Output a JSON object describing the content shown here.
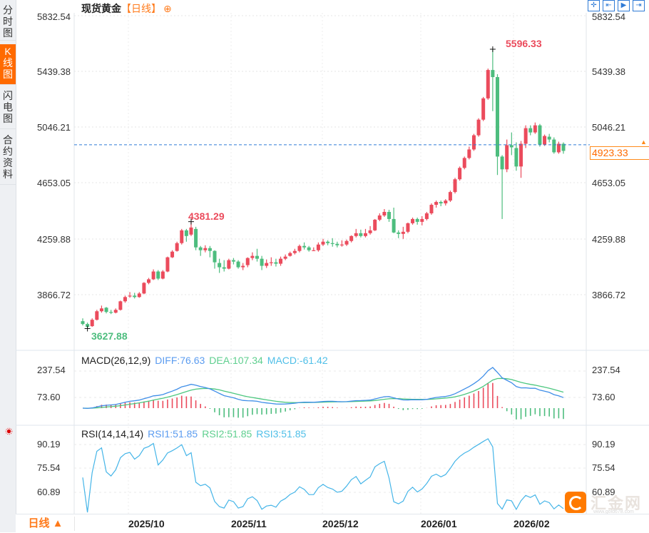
{
  "sidebar": {
    "tabs": [
      {
        "label": "分时图",
        "active": false
      },
      {
        "label": "K线图",
        "active": true
      },
      {
        "label": "闪电图",
        "active": false
      },
      {
        "label": "合约资料",
        "active": false
      }
    ]
  },
  "header": {
    "title": "现货黄金",
    "period": "【日线】",
    "add_symbol": "⊕",
    "tools": [
      "crosshair",
      "zoom-range",
      "play-forward",
      "exit-right"
    ]
  },
  "main_chart": {
    "y_ticks": [
      "5832.54",
      "5439.38",
      "5046.21",
      "4653.05",
      "4259.88",
      "3866.72"
    ],
    "current_price": "4923.33",
    "high_label": "5596.33",
    "mid_high_label": "4381.29",
    "low_label": "3627.88"
  },
  "macd": {
    "title": "MACD(26,12,9)",
    "diff": "DIFF:76.63",
    "dea": "DEA:107.34",
    "macd": "MACD:-61.42",
    "y_ticks": [
      "237.54",
      "73.60"
    ]
  },
  "rsi": {
    "title": "RSI(14,14,14)",
    "rsi1": "RSI1:51.85",
    "rsi2": "RSI2:51.85",
    "rsi3": "RSI3:51.85",
    "y_ticks": [
      "90.19",
      "75.54",
      "60.89"
    ]
  },
  "footer": {
    "period_button": "日线 ▲",
    "x_labels": [
      "2025/10",
      "2025/11",
      "2025/12",
      "2026/01",
      "2026/02"
    ]
  },
  "logo": {
    "name": "汇金网",
    "url": "www.gold678.com"
  },
  "colors": {
    "up": "#eb4b5c",
    "down": "#4dbd7e",
    "diff": "#3f8ee8",
    "dea": "#4cc77f",
    "rsi": "#45b5e8",
    "accent": "#ff6a00",
    "price_line": "#2f7bd6"
  },
  "chart_data": {
    "type": "candlestick",
    "title": "现货黄金 日线",
    "y_axis": {
      "min": 3627.88,
      "max": 5832.54,
      "ticks": [
        5832.54,
        5439.38,
        5046.21,
        4653.05,
        4259.88,
        3866.72
      ]
    },
    "x_labels": [
      "2025/10",
      "2025/11",
      "2025/12",
      "2026/01",
      "2026/02"
    ],
    "annotations": [
      {
        "label": "5596.33",
        "type": "high"
      },
      {
        "label": "4381.29",
        "type": "local high"
      },
      {
        "label": "3627.88",
        "type": "low"
      }
    ],
    "last_price": 4923.33,
    "candles": [
      [
        3680,
        3660,
        3700,
        3650
      ],
      [
        3660,
        3640,
        3670,
        3628
      ],
      [
        3645,
        3690,
        3700,
        3640
      ],
      [
        3690,
        3750,
        3760,
        3685
      ],
      [
        3750,
        3770,
        3790,
        3740
      ],
      [
        3775,
        3745,
        3780,
        3735
      ],
      [
        3745,
        3740,
        3760,
        3730
      ],
      [
        3740,
        3760,
        3770,
        3735
      ],
      [
        3760,
        3820,
        3825,
        3755
      ],
      [
        3820,
        3850,
        3860,
        3810
      ],
      [
        3855,
        3860,
        3885,
        3845
      ],
      [
        3860,
        3850,
        3880,
        3840
      ],
      [
        3850,
        3875,
        3885,
        3845
      ],
      [
        3875,
        3950,
        3955,
        3870
      ],
      [
        3950,
        3975,
        3985,
        3940
      ],
      [
        3975,
        4030,
        4045,
        3970
      ],
      [
        4030,
        3980,
        4040,
        3970
      ],
      [
        3980,
        4030,
        4040,
        3975
      ],
      [
        4030,
        4130,
        4135,
        4025
      ],
      [
        4130,
        4170,
        4180,
        4125
      ],
      [
        4175,
        4230,
        4240,
        4170
      ],
      [
        4230,
        4320,
        4330,
        4220
      ],
      [
        4320,
        4280,
        4330,
        4240
      ],
      [
        4290,
        4340,
        4381,
        4280
      ],
      [
        4330,
        4200,
        4345,
        4180
      ],
      [
        4200,
        4180,
        4210,
        4140
      ],
      [
        4180,
        4195,
        4215,
        4165
      ],
      [
        4195,
        4175,
        4210,
        4130
      ],
      [
        4175,
        4095,
        4180,
        4050
      ],
      [
        4090,
        4060,
        4120,
        4020
      ],
      [
        4060,
        4050,
        4110,
        4030
      ],
      [
        4050,
        4110,
        4120,
        4045
      ],
      [
        4110,
        4100,
        4125,
        4080
      ],
      [
        4100,
        4060,
        4110,
        4050
      ],
      [
        4060,
        4070,
        4090,
        4040
      ],
      [
        4075,
        4125,
        4130,
        4060
      ],
      [
        4125,
        4140,
        4165,
        4110
      ],
      [
        4140,
        4120,
        4190,
        4100
      ],
      [
        4120,
        4070,
        4140,
        4040
      ],
      [
        4070,
        4090,
        4115,
        4055
      ],
      [
        4090,
        4095,
        4130,
        4070
      ],
      [
        4095,
        4085,
        4120,
        4065
      ],
      [
        4085,
        4120,
        4135,
        4070
      ],
      [
        4120,
        4135,
        4150,
        4110
      ],
      [
        4140,
        4160,
        4170,
        4135
      ],
      [
        4160,
        4175,
        4190,
        4150
      ],
      [
        4175,
        4210,
        4220,
        4165
      ],
      [
        4210,
        4200,
        4235,
        4185
      ],
      [
        4200,
        4180,
        4210,
        4170
      ],
      [
        4180,
        4180,
        4200,
        4175
      ],
      [
        4180,
        4220,
        4235,
        4170
      ],
      [
        4220,
        4240,
        4260,
        4210
      ],
      [
        4240,
        4230,
        4250,
        4215
      ],
      [
        4230,
        4225,
        4265,
        4205
      ],
      [
        4225,
        4215,
        4240,
        4200
      ],
      [
        4215,
        4220,
        4250,
        4205
      ],
      [
        4220,
        4245,
        4255,
        4210
      ],
      [
        4245,
        4280,
        4285,
        4235
      ],
      [
        4280,
        4300,
        4330,
        4270
      ],
      [
        4300,
        4280,
        4325,
        4270
      ],
      [
        4280,
        4300,
        4330,
        4270
      ],
      [
        4300,
        4320,
        4350,
        4290
      ],
      [
        4320,
        4395,
        4400,
        4315
      ],
      [
        4395,
        4425,
        4440,
        4385
      ],
      [
        4425,
        4450,
        4470,
        4415
      ],
      [
        4450,
        4400,
        4465,
        4380
      ],
      [
        4400,
        4305,
        4480,
        4300
      ],
      [
        4305,
        4295,
        4320,
        4265
      ],
      [
        4295,
        4310,
        4345,
        4260
      ],
      [
        4310,
        4370,
        4375,
        4300
      ],
      [
        4370,
        4400,
        4410,
        4360
      ],
      [
        4400,
        4380,
        4410,
        4360
      ],
      [
        4380,
        4400,
        4420,
        4355
      ],
      [
        4400,
        4440,
        4450,
        4390
      ],
      [
        4440,
        4500,
        4510,
        4430
      ],
      [
        4500,
        4520,
        4530,
        4480
      ],
      [
        4520,
        4510,
        4530,
        4490
      ],
      [
        4510,
        4530,
        4540,
        4495
      ],
      [
        4530,
        4590,
        4600,
        4520
      ],
      [
        4590,
        4680,
        4690,
        4580
      ],
      [
        4680,
        4760,
        4770,
        4670
      ],
      [
        4760,
        4830,
        4840,
        4750
      ],
      [
        4830,
        4890,
        4910,
        4820
      ],
      [
        4890,
        4990,
        5000,
        4880
      ],
      [
        4990,
        5100,
        5110,
        4980
      ],
      [
        5100,
        5250,
        5260,
        5090
      ],
      [
        5250,
        5450,
        5460,
        5240
      ],
      [
        5450,
        5400,
        5596,
        5160
      ],
      [
        5400,
        4840,
        5420,
        4710
      ],
      [
        4840,
        4750,
        4850,
        4400
      ],
      [
        4750,
        4920,
        4960,
        4730
      ],
      [
        4920,
        4905,
        5010,
        4850
      ],
      [
        4900,
        4770,
        4940,
        4740
      ],
      [
        4770,
        4930,
        4950,
        4690
      ],
      [
        4930,
        5040,
        5060,
        4900
      ],
      [
        5040,
        5010,
        5060,
        4990
      ],
      [
        5010,
        5060,
        5080,
        5000
      ],
      [
        5060,
        4925,
        5070,
        4910
      ],
      [
        4925,
        4985,
        4995,
        4915
      ],
      [
        4980,
        4960,
        5000,
        4940
      ],
      [
        4960,
        4870,
        4975,
        4860
      ],
      [
        4870,
        4930,
        4945,
        4860
      ],
      [
        4930,
        4880,
        4940,
        4860
      ]
    ]
  }
}
